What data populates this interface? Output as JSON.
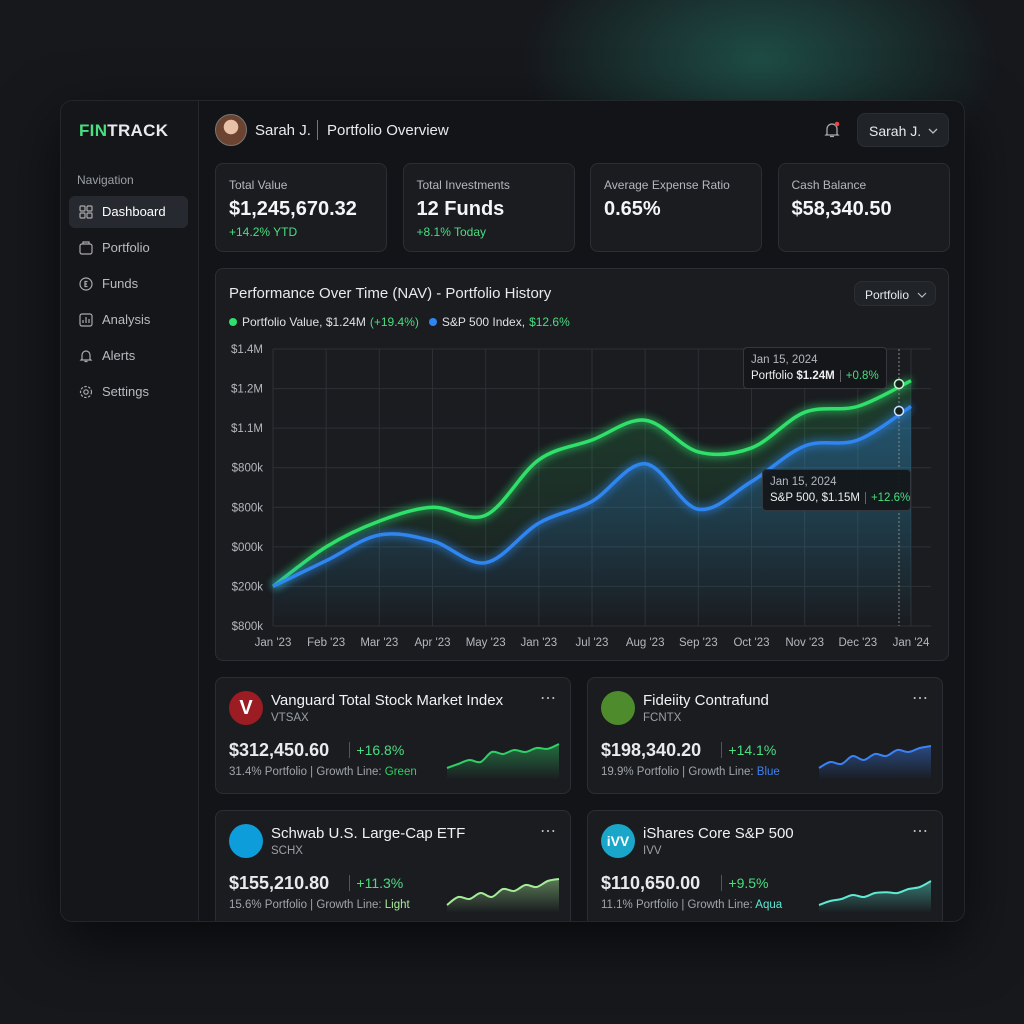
{
  "brand": {
    "a": "FIN",
    "b": "TRACK"
  },
  "sidebar": {
    "heading": "Navigation",
    "items": [
      "Dashboard",
      "Portfolio",
      "Funds",
      "Analysis",
      "Alerts",
      "Settings"
    ]
  },
  "header": {
    "user": "Sarah J.",
    "title": "Portfolio Overview",
    "menu": "Sarah J."
  },
  "stats": [
    {
      "label": "Total Value",
      "value": "$1,245,670.32",
      "sub": "+14.2% YTD"
    },
    {
      "label": "Total Investments",
      "value": "12 Funds",
      "sub": "+8.1% Today"
    },
    {
      "label": "Average Expense Ratio",
      "value": "0.65%"
    },
    {
      "label": "Cash Balance",
      "value": "$58,340.50"
    }
  ],
  "chart_data": {
    "type": "line",
    "title": "Performance Over Time (NAV) - Portfolio History",
    "dropdown": "Portfolio",
    "categories": [
      "Jan '23",
      "Feb '23",
      "Mar '23",
      "Apr '23",
      "May '23",
      "Jan '23",
      "Jul '23",
      "Aug '23",
      "Sep '23",
      "Oct '23",
      "Nov '23",
      "Dec '23",
      "Jan '24"
    ],
    "ylim": [
      0,
      7
    ],
    "ytick_labels": [
      "$800k",
      "$200k",
      "$000k",
      "$800k",
      "$800k",
      "$1.1M",
      "$1.2M",
      "$1.4M"
    ],
    "grid": true,
    "series": [
      {
        "name": "Portfolio Value, $1.24M",
        "change": "(+19.4%)",
        "color": "#2fe06a",
        "values": [
          1.0,
          2.0,
          2.65,
          3.0,
          2.8,
          4.2,
          4.7,
          5.2,
          4.4,
          4.5,
          5.4,
          5.55,
          6.2
        ]
      },
      {
        "name": "S&P 500 Index,",
        "change": "$12.6%",
        "color": "#2f86f0",
        "values": [
          1.0,
          1.65,
          2.3,
          2.15,
          1.6,
          2.6,
          3.15,
          4.1,
          2.95,
          3.65,
          4.55,
          4.7,
          5.55
        ]
      }
    ],
    "tooltips": [
      {
        "date": "Jan 15, 2024",
        "label": "Portfolio",
        "value": "$1.24M",
        "change": "+0.8%"
      },
      {
        "date": "Jan 15, 2024",
        "label": "S&P 500, $1.15M",
        "change": "+12.6%"
      }
    ]
  },
  "funds": [
    {
      "logo": "V",
      "name": "Vanguard Total Stock Market Index",
      "ticker": "VTSAX",
      "value": "$312,450.60",
      "change": "+16.8%",
      "detail": "31.4% Portfolio | Growth Line:",
      "line": "Green",
      "color": "#2fd066",
      "sparkline": [
        2,
        3,
        4,
        3.5,
        6,
        5.5,
        6.5,
        6,
        7,
        6.8,
        8
      ]
    },
    {
      "logo": "",
      "name": "Fideiity Contrafund",
      "ticker": "FCNTX",
      "value": "$198,340.20",
      "change": "+14.1%",
      "detail": "19.9% Portfolio | Growth Line:",
      "line": "Blue",
      "color": "#3b82f6",
      "sparkline": [
        2,
        3.5,
        3,
        5,
        4,
        5.5,
        5,
        6.5,
        6,
        7,
        7.5
      ]
    },
    {
      "logo": "",
      "name": "Schwab U.S. Large-Cap ETF",
      "ticker": "SCHX",
      "value": "$155,210.80",
      "change": "+11.3%",
      "detail": "15.6% Portfolio | Growth Line:",
      "line": "Light",
      "color": "#a6ec98",
      "sparkline": [
        1,
        3,
        2.5,
        4,
        3,
        5,
        4.5,
        6,
        5.5,
        7,
        7.5
      ]
    },
    {
      "logo": "iVV",
      "name": "iShares Core S&P 500",
      "ticker": "IVV",
      "value": "$110,650.00",
      "change": "+9.5%",
      "detail": "11.1% Portfolio | Growth Line:",
      "line": "Aqua",
      "color": "#5eead4",
      "sparkline": [
        1,
        2,
        2.5,
        3.5,
        3,
        4,
        4.2,
        4,
        5,
        5.5,
        7
      ]
    }
  ]
}
